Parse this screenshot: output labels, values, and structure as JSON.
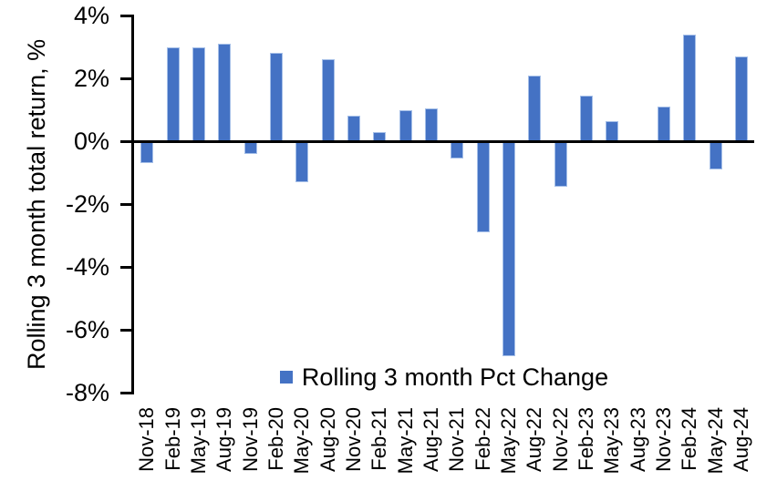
{
  "chart": {
    "y_axis_title": "Rolling 3 month total return, %",
    "legend_label": "Rolling 3 month Pct Change",
    "colors": {
      "bar_fill": "#4472C4",
      "bar_edge": "#A5BFE8",
      "axis": "#000000",
      "background": "#FFFFFF"
    }
  },
  "chart_data": {
    "type": "bar",
    "title": "",
    "xlabel": "",
    "ylabel": "Rolling 3 month total return, %",
    "legend": "Rolling 3 month Pct Change",
    "legend_position": "inside-bottom-center",
    "grid": false,
    "ylim": [
      -8,
      4
    ],
    "ytick_step": 2,
    "ytick_labels": [
      "4%",
      "2%",
      "0%",
      "-2%",
      "-4%",
      "-6%",
      "-8%"
    ],
    "categories": [
      "Nov-18",
      "Feb-19",
      "May-19",
      "Aug-19",
      "Nov-19",
      "Feb-20",
      "May-20",
      "Aug-20",
      "Nov-20",
      "Feb-21",
      "May-21",
      "Aug-21",
      "Nov-21",
      "Feb-22",
      "May-22",
      "Aug-22",
      "Nov-22",
      "Feb-23",
      "May-23",
      "Aug-23",
      "Nov-23",
      "Feb-24",
      "May-24",
      "Aug-24"
    ],
    "values": [
      -0.7,
      3.0,
      3.0,
      3.1,
      -0.4,
      2.8,
      -1.3,
      2.6,
      0.8,
      0.3,
      1.0,
      1.05,
      -0.55,
      -2.9,
      -6.85,
      2.1,
      -1.45,
      1.45,
      0.65,
      0.0,
      1.1,
      3.4,
      -0.9,
      2.7
    ]
  }
}
